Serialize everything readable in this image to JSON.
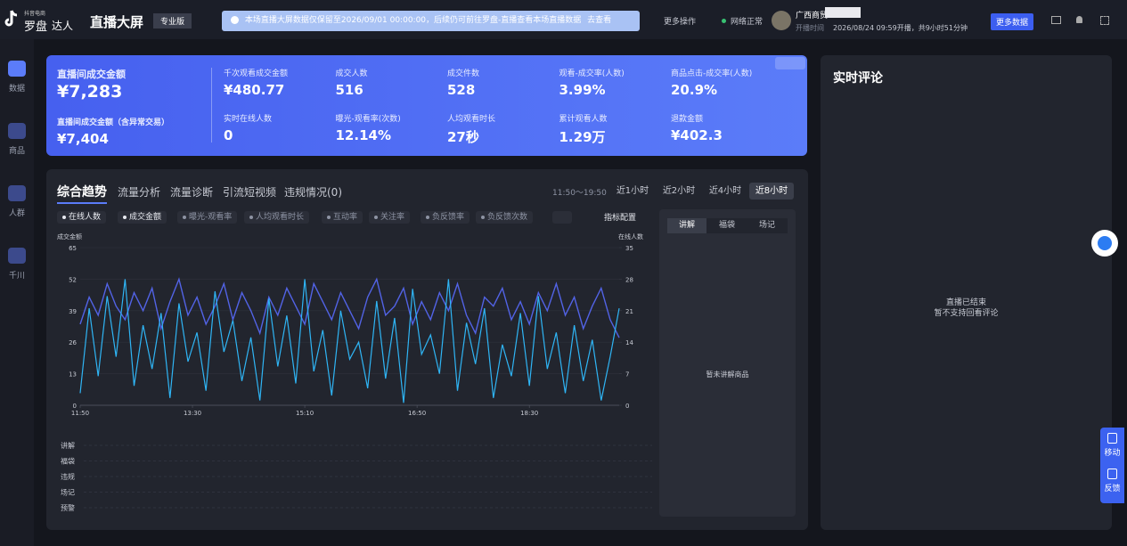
{
  "header": {
    "logo_small": "抖音电商",
    "logo": "罗盘",
    "logo_sub": "达人",
    "title": "直播大屏",
    "badge": "专业版",
    "notice": "本场直播大屏数据仅保留至2026/09/01 00:00:00，后续仍可前往罗盘-直播查看本场直播数据",
    "notice_link": "去查看",
    "more": "更多操作",
    "network": "网络正常",
    "user": "广西商贸",
    "live_time_label": "开播时间",
    "live_time": "2026/08/24 09:59开播，共9小时51分钟",
    "more_data": "更多数据"
  },
  "sidebar": [
    "数据",
    "商品",
    "人群",
    "千川"
  ],
  "metrics": {
    "main": [
      {
        "label": "直播间成交金额",
        "value": "¥7,283"
      },
      {
        "label": "直播间成交金额（含异常交易）",
        "value": "¥7,404"
      }
    ],
    "grid": [
      {
        "label": "千次观看成交金额",
        "value": "¥480.77"
      },
      {
        "label": "成交人数",
        "value": "516"
      },
      {
        "label": "成交件数",
        "value": "528"
      },
      {
        "label": "观看-成交率(人数)",
        "value": "3.99%"
      },
      {
        "label": "商品点击-成交率(人数)",
        "value": "20.9%"
      },
      {
        "label": "实时在线人数",
        "value": "0"
      },
      {
        "label": "曝光-观看率(次数)",
        "value": "12.14%"
      },
      {
        "label": "人均观看时长",
        "value": "27秒"
      },
      {
        "label": "累计观看人数",
        "value": "1.29万"
      },
      {
        "label": "退款金额",
        "value": "¥402.3"
      }
    ]
  },
  "trend": {
    "tabs": [
      "综合趋势",
      "流量分析",
      "流量诊断",
      "引流短视频",
      "违规情况(0)"
    ],
    "time_range": "11:50～19:50",
    "periods": [
      "近1小时",
      "近2小时",
      "近4小时",
      "近8小时"
    ],
    "chips": [
      "曝光-观看率",
      "人均观看时长",
      "互动率",
      "关注率",
      "负反馈率",
      "负反馈次数"
    ],
    "config": "指标配置",
    "tracks": [
      "讲解",
      "福袋",
      "违规",
      "场记",
      "预警"
    ],
    "side_tabs": [
      "讲解",
      "福袋",
      "场记"
    ],
    "side_empty": "暂未讲解商品"
  },
  "chart_data": {
    "type": "line",
    "ylabel": "成交金额",
    "y2label": "在线人数",
    "x": [
      0,
      8,
      16,
      24,
      32,
      40,
      48,
      56,
      64,
      72,
      80,
      88,
      96,
      104,
      112,
      120,
      128,
      136,
      144,
      152,
      160,
      168,
      176,
      184,
      192,
      200,
      208,
      216,
      224,
      232,
      240,
      248,
      256,
      264,
      272,
      280,
      288,
      296,
      304,
      312,
      320,
      328,
      336,
      344,
      352,
      360,
      368,
      376,
      384,
      392,
      400,
      408,
      416,
      424,
      432,
      440,
      448,
      456,
      464,
      472,
      480
    ],
    "xlim": [
      0,
      480
    ],
    "xticks": [
      {
        "value": 0,
        "label": "11:50"
      },
      {
        "value": 100,
        "label": "13:30"
      },
      {
        "value": 200,
        "label": "15:10"
      },
      {
        "value": 300,
        "label": "16:50"
      },
      {
        "value": 400,
        "label": "18:30"
      }
    ],
    "ylim": [
      0,
      65
    ],
    "yticks": [
      0,
      13,
      26,
      39,
      52,
      65
    ],
    "y2lim": [
      0,
      35
    ],
    "y2ticks": [
      0,
      7,
      14,
      21,
      28,
      35
    ],
    "series": [
      {
        "name": "在线人数",
        "color": "#5263e6",
        "axis": "y2",
        "values": [
          18,
          24,
          20,
          27,
          22,
          19,
          25,
          21,
          26,
          17,
          23,
          28,
          20,
          24,
          18,
          22,
          27,
          19,
          25,
          21,
          16,
          24,
          20,
          26,
          22,
          18,
          27,
          23,
          19,
          25,
          21,
          17,
          24,
          28,
          20,
          22,
          26,
          18,
          23,
          19,
          25,
          21,
          27,
          20,
          16,
          24,
          22,
          26,
          19,
          23,
          18,
          25,
          21,
          27,
          20,
          24,
          17,
          22,
          26,
          19,
          15
        ]
      },
      {
        "name": "成交金额",
        "color": "#2fb5f5",
        "values": [
          5,
          40,
          12,
          45,
          20,
          52,
          8,
          33,
          15,
          38,
          3,
          42,
          18,
          30,
          6,
          47,
          22,
          35,
          10,
          28,
          2,
          44,
          16,
          37,
          9,
          52,
          14,
          31,
          4,
          39,
          19,
          26,
          7,
          43,
          11,
          36,
          1,
          48,
          21,
          29,
          13,
          52,
          6,
          34,
          17,
          40,
          3,
          25,
          12,
          38,
          8,
          45,
          15,
          30,
          5,
          33,
          10,
          27,
          2,
          20,
          40
        ]
      }
    ]
  },
  "comments": {
    "title": "实时评论",
    "line1": "直播已结束",
    "line2": "暂不支持回看评论"
  },
  "float": [
    "移动",
    "反馈"
  ]
}
